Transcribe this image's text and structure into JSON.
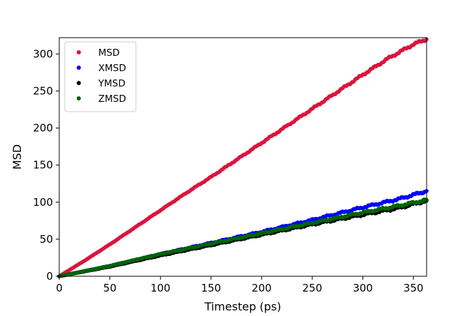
{
  "chart_data": {
    "type": "scatter",
    "title": "",
    "xlabel": "Timestep (ps)",
    "ylabel": "MSD",
    "xlim": [
      0,
      363
    ],
    "ylim": [
      0,
      322
    ],
    "xticks": [
      0,
      50,
      100,
      150,
      200,
      250,
      300,
      350
    ],
    "yticks": [
      0,
      50,
      100,
      150,
      200,
      250,
      300
    ],
    "grid": false,
    "legend_position": "top-left",
    "series": [
      {
        "name": "MSD",
        "color": "#dc143c",
        "points": [
          [
            0,
            0
          ],
          [
            25,
            21
          ],
          [
            50,
            43
          ],
          [
            75,
            66
          ],
          [
            100,
            89
          ],
          [
            125,
            112
          ],
          [
            150,
            134
          ],
          [
            175,
            157
          ],
          [
            200,
            180
          ],
          [
            225,
            203
          ],
          [
            250,
            226
          ],
          [
            275,
            249
          ],
          [
            300,
            272
          ],
          [
            325,
            294
          ],
          [
            350,
            313
          ],
          [
            363,
            320
          ]
        ]
      },
      {
        "name": "XMSD",
        "color": "#0000ff",
        "points": [
          [
            0,
            0
          ],
          [
            50,
            14
          ],
          [
            100,
            30
          ],
          [
            150,
            45
          ],
          [
            200,
            60
          ],
          [
            250,
            76
          ],
          [
            300,
            93
          ],
          [
            335,
            104
          ],
          [
            363,
            115
          ]
        ]
      },
      {
        "name": "YMSD",
        "color": "#000000",
        "points": [
          [
            0,
            0
          ],
          [
            50,
            13
          ],
          [
            100,
            28
          ],
          [
            150,
            42
          ],
          [
            200,
            56
          ],
          [
            250,
            70
          ],
          [
            300,
            83
          ],
          [
            335,
            92
          ],
          [
            363,
            102
          ]
        ]
      },
      {
        "name": "ZMSD",
        "color": "#006400",
        "points": [
          [
            0,
            0
          ],
          [
            50,
            14
          ],
          [
            100,
            30
          ],
          [
            150,
            44
          ],
          [
            200,
            58
          ],
          [
            250,
            72
          ],
          [
            300,
            86
          ],
          [
            335,
            95
          ],
          [
            363,
            103
          ]
        ]
      }
    ]
  }
}
